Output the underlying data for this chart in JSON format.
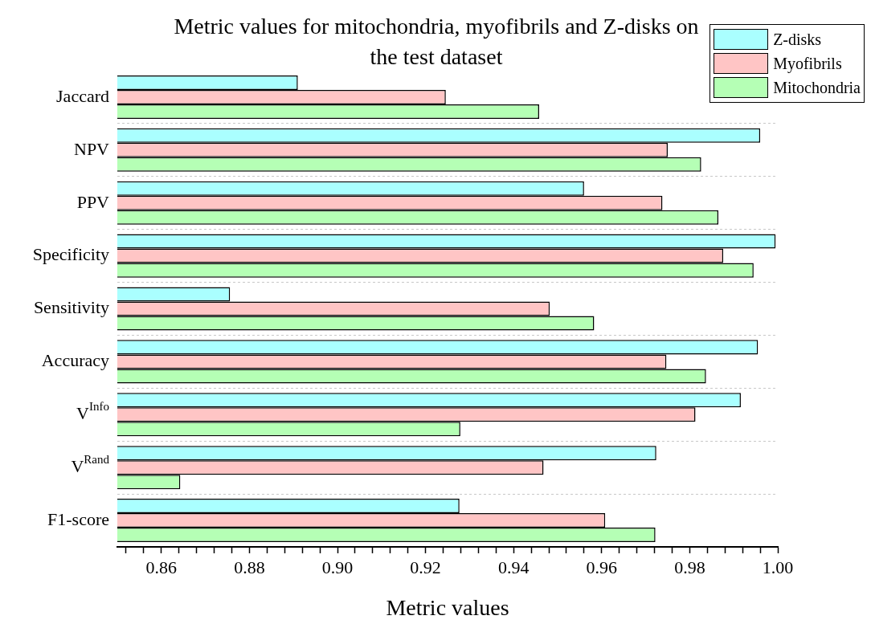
{
  "chart_data": {
    "type": "bar",
    "orientation": "horizontal",
    "title": "Metric values for mitochondria, myofibrils and Z-disks on the test dataset",
    "xlabel": "Metric values",
    "categories": [
      "Jaccard",
      "NPV",
      "PPV",
      "Specificity",
      "Sensitivity",
      "Accuracy",
      "V$^{Info}$",
      "V$^{Rand}$",
      "F1-score"
    ],
    "series": [
      {
        "name": "Z-disks",
        "color": "#aaffff",
        "values": [
          0.891,
          0.996,
          0.956,
          0.9995,
          0.8756,
          0.9955,
          0.9916,
          0.9724,
          0.9277
        ]
      },
      {
        "name": "Myofibrils",
        "color": "#ffc5c5",
        "values": [
          0.9246,
          0.975,
          0.9738,
          0.9876,
          0.9482,
          0.9747,
          0.9813,
          0.9468,
          0.9608
        ]
      },
      {
        "name": "Mitochondria",
        "color": "#b5ffb5",
        "values": [
          0.9458,
          0.9826,
          0.9865,
          0.9945,
          0.9583,
          0.9837,
          0.9279,
          0.8643,
          0.9722
        ]
      }
    ],
    "xlim": [
      0.85,
      1.0
    ],
    "xticks": [
      {
        "value": 0.852,
        "label": null
      },
      {
        "value": 0.856,
        "label": null
      },
      0.86,
      {
        "value": 0.864,
        "label": null
      },
      {
        "value": 0.868,
        "label": null
      },
      {
        "value": 0.872,
        "label": null
      },
      {
        "value": 0.876,
        "label": null
      },
      0.88,
      {
        "value": 0.884,
        "label": null
      },
      {
        "value": 0.888,
        "label": null
      },
      {
        "value": 0.892,
        "label": null
      },
      {
        "value": 0.896,
        "label": null
      },
      {
        "value": 0.9,
        "label": "0.90"
      },
      {
        "value": 0.904,
        "label": null
      },
      {
        "value": 0.908,
        "label": null
      },
      {
        "value": 0.912,
        "label": null
      },
      {
        "value": 0.916,
        "label": null
      },
      0.92,
      {
        "value": 0.924,
        "label": null
      },
      {
        "value": 0.928,
        "label": null
      },
      {
        "value": 0.932,
        "label": null
      },
      {
        "value": 0.936,
        "label": null
      },
      0.94,
      {
        "value": 0.944,
        "label": null
      },
      {
        "value": 0.948,
        "label": null
      },
      {
        "value": 0.952,
        "label": null
      },
      {
        "value": 0.956,
        "label": null
      },
      0.96,
      {
        "value": 0.964,
        "label": null
      },
      {
        "value": 0.968,
        "label": null
      },
      {
        "value": 0.972,
        "label": null
      },
      {
        "value": 0.976,
        "label": null
      },
      0.98,
      {
        "value": 0.984,
        "label": null
      },
      {
        "value": 0.988,
        "label": null
      },
      {
        "value": 0.992,
        "label": null
      },
      {
        "value": 0.996,
        "label": null
      },
      {
        "value": 1.0,
        "label": "1.00"
      }
    ],
    "grid": "y",
    "legend": "top right"
  }
}
